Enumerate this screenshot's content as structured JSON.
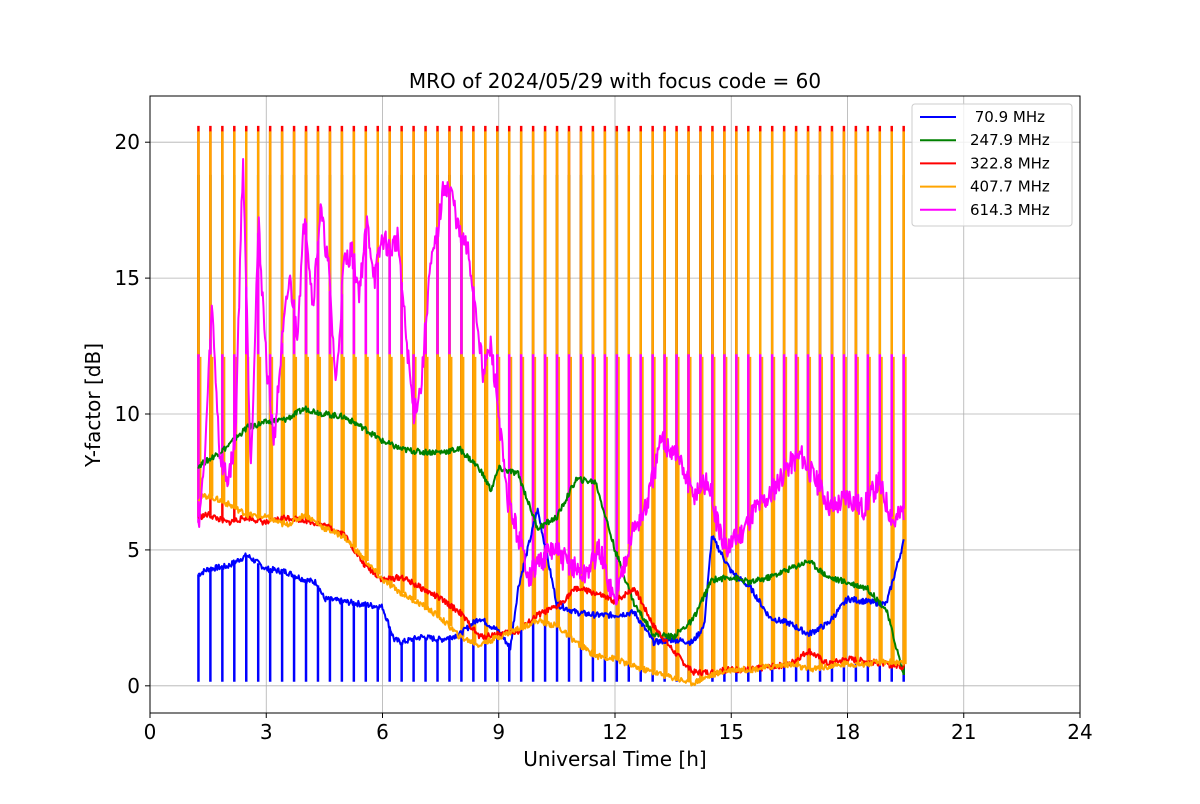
{
  "chart_data": {
    "type": "line",
    "title": "MRO of 2024/05/29 with focus code = 60",
    "xlabel": "Universal Time [h]",
    "ylabel": "Y-factor [dB]",
    "xlim": [
      0,
      24
    ],
    "ylim": [
      -1.0,
      21.7
    ],
    "xticks": [
      0,
      3,
      6,
      9,
      12,
      15,
      18,
      21,
      24
    ],
    "yticks": [
      0,
      5,
      10,
      15,
      20
    ],
    "xtick_labels": [
      "0",
      "3",
      "6",
      "9",
      "12",
      "15",
      "18",
      "21",
      "24"
    ],
    "ytick_labels": [
      "0",
      "5",
      "10",
      "15",
      "20"
    ],
    "grid": true,
    "legend_position": "top-right",
    "legend_entries": [
      " 70.9 MHz",
      "247.9 MHz",
      "322.8 MHz",
      "407.7 MHz",
      "614.3 MHz"
    ],
    "calibration_spikes": {
      "start_hour": 1.25,
      "end_hour": 19.45,
      "count": 60,
      "description_note": "periodic calibration spikes; peaks per series listed as spike_peak"
    },
    "series": [
      {
        "name": " 70.9 MHz",
        "color": "#0000ff",
        "spike_dips_to": 0.15,
        "x": [
          1.25,
          1.5,
          2.0,
          2.5,
          2.8,
          3.0,
          3.5,
          4.0,
          4.3,
          4.5,
          5.0,
          5.5,
          6.0,
          6.3,
          6.5,
          7.0,
          7.5,
          8.0,
          8.5,
          9.0,
          9.3,
          9.5,
          10.0,
          10.5,
          11.0,
          11.5,
          12.0,
          12.5,
          13.0,
          13.5,
          14.0,
          14.3,
          14.5,
          15.0,
          15.5,
          16.0,
          16.5,
          17.0,
          17.5,
          18.0,
          18.5,
          19.0,
          19.45
        ],
        "values": [
          4.1,
          4.3,
          4.4,
          4.8,
          4.5,
          4.3,
          4.2,
          3.9,
          3.8,
          3.2,
          3.1,
          3.0,
          2.9,
          1.7,
          1.6,
          1.8,
          1.7,
          1.9,
          2.5,
          2.0,
          1.4,
          3.6,
          6.5,
          3.0,
          2.7,
          2.6,
          2.6,
          2.7,
          1.6,
          1.7,
          1.6,
          2.2,
          5.5,
          4.2,
          3.6,
          2.5,
          2.3,
          1.9,
          2.3,
          3.2,
          3.1,
          3.0,
          5.3
        ]
      },
      {
        "name": "247.9 MHz",
        "color": "#008000",
        "spike_peak": 18.8,
        "x": [
          1.25,
          1.5,
          2.0,
          2.5,
          3.0,
          3.5,
          4.0,
          4.5,
          5.0,
          5.5,
          6.0,
          6.5,
          7.0,
          7.5,
          8.0,
          8.5,
          8.8,
          9.0,
          9.5,
          10.0,
          10.5,
          11.0,
          11.5,
          12.0,
          12.5,
          13.0,
          13.5,
          14.0,
          14.5,
          15.0,
          15.5,
          16.0,
          16.5,
          17.0,
          17.5,
          18.0,
          18.5,
          19.0,
          19.45
        ],
        "values": [
          8.1,
          8.3,
          8.8,
          9.5,
          9.7,
          9.8,
          10.2,
          10.0,
          9.9,
          9.5,
          9.0,
          8.7,
          8.6,
          8.6,
          8.7,
          8.0,
          7.2,
          8.0,
          7.8,
          5.8,
          6.2,
          7.6,
          7.5,
          5.0,
          3.0,
          1.9,
          1.8,
          2.4,
          3.9,
          4.0,
          3.8,
          4.0,
          4.3,
          4.6,
          4.0,
          3.8,
          3.6,
          2.8,
          0.4
        ]
      },
      {
        "name": "322.8 MHz",
        "color": "#ff0000",
        "spike_peak": 20.6,
        "x": [
          1.25,
          1.5,
          2.0,
          2.5,
          3.0,
          3.5,
          4.0,
          4.5,
          5.0,
          5.5,
          6.0,
          6.5,
          7.0,
          7.5,
          8.0,
          8.5,
          9.0,
          9.5,
          10.0,
          10.5,
          11.0,
          11.5,
          12.0,
          12.5,
          13.0,
          13.5,
          14.0,
          14.5,
          15.0,
          15.5,
          16.0,
          16.5,
          17.0,
          17.5,
          18.0,
          18.5,
          19.0,
          19.45
        ],
        "values": [
          6.2,
          6.3,
          6.0,
          6.2,
          6.0,
          6.2,
          6.1,
          5.9,
          5.6,
          4.5,
          3.9,
          4.0,
          3.6,
          3.2,
          2.7,
          1.8,
          1.9,
          2.0,
          2.6,
          2.9,
          3.6,
          3.4,
          3.1,
          3.6,
          2.2,
          1.3,
          0.5,
          0.5,
          0.6,
          0.6,
          0.7,
          0.8,
          1.3,
          0.8,
          1.0,
          0.9,
          0.8,
          0.7
        ]
      },
      {
        "name": "407.7 MHz",
        "color": "#ffa500",
        "spike_peak": 20.4,
        "spike_secondary": 12.1,
        "x": [
          1.25,
          1.5,
          2.0,
          2.5,
          3.0,
          3.5,
          4.0,
          4.5,
          5.0,
          5.5,
          6.0,
          6.5,
          7.0,
          7.5,
          8.0,
          8.5,
          9.0,
          9.5,
          10.0,
          10.5,
          11.0,
          11.5,
          12.0,
          12.5,
          13.0,
          13.5,
          14.0,
          14.5,
          15.0,
          15.5,
          16.0,
          16.5,
          17.0,
          17.5,
          18.0,
          18.5,
          19.0,
          19.45
        ],
        "values": [
          6.9,
          7.0,
          6.7,
          6.3,
          6.2,
          5.9,
          6.3,
          5.8,
          5.5,
          4.7,
          3.9,
          3.4,
          3.0,
          2.5,
          1.8,
          1.5,
          1.8,
          2.1,
          2.4,
          2.2,
          1.6,
          1.1,
          1.0,
          0.7,
          0.5,
          0.3,
          0.1,
          0.4,
          0.6,
          0.6,
          0.7,
          0.8,
          0.6,
          0.7,
          0.8,
          0.8,
          0.9,
          0.8
        ]
      },
      {
        "name": "614.3 MHz",
        "color": "#ff00ff",
        "spike_peak": 12.2,
        "x": [
          1.25,
          1.4,
          1.6,
          1.8,
          2.0,
          2.2,
          2.4,
          2.6,
          2.8,
          3.0,
          3.2,
          3.4,
          3.6,
          3.8,
          4.0,
          4.2,
          4.4,
          4.6,
          4.8,
          5.0,
          5.2,
          5.4,
          5.6,
          5.8,
          6.0,
          6.2,
          6.4,
          6.6,
          6.8,
          7.0,
          7.2,
          7.4,
          7.6,
          7.8,
          8.0,
          8.2,
          8.4,
          8.6,
          8.8,
          9.0,
          9.2,
          9.4,
          9.6,
          9.8,
          10.0,
          10.4,
          10.8,
          11.2,
          11.6,
          12.0,
          12.4,
          12.8,
          13.2,
          13.6,
          14.0,
          14.4,
          14.8,
          15.2,
          15.6,
          16.0,
          16.4,
          16.8,
          17.2,
          17.6,
          18.0,
          18.4,
          18.8,
          19.2,
          19.45
        ],
        "values": [
          6.0,
          8.0,
          14.0,
          8.5,
          7.5,
          9.0,
          19.5,
          8.0,
          17.0,
          12.0,
          9.0,
          12.5,
          15.0,
          13.0,
          17.5,
          14.0,
          17.5,
          15.5,
          11.0,
          15.5,
          16.0,
          14.5,
          17.0,
          15.0,
          16.5,
          16.0,
          16.5,
          13.0,
          10.0,
          11.0,
          15.0,
          16.5,
          18.5,
          18.0,
          16.5,
          16.0,
          14.0,
          11.5,
          12.5,
          10.0,
          7.0,
          6.0,
          5.0,
          4.0,
          4.5,
          5.0,
          4.5,
          4.0,
          5.0,
          3.0,
          5.5,
          6.5,
          9.0,
          8.5,
          7.0,
          7.5,
          5.0,
          5.5,
          6.5,
          7.0,
          8.0,
          8.5,
          7.5,
          6.5,
          7.0,
          6.5,
          7.5,
          6.0,
          6.5
        ]
      }
    ]
  }
}
